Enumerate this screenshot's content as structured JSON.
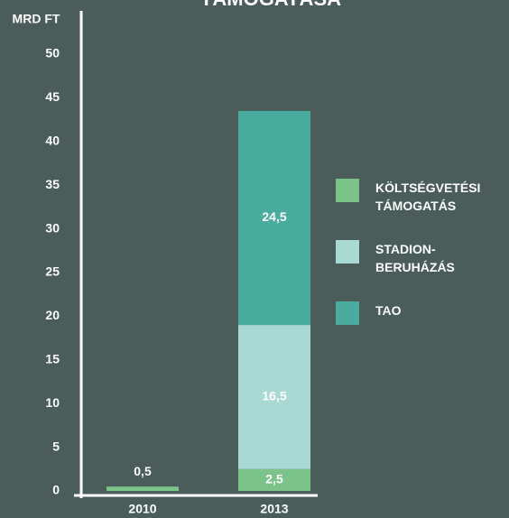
{
  "chart_data": {
    "type": "stacked_bar",
    "title": "TÁMOGATÁSA",
    "ylabel": "MRD FT",
    "categories": [
      "2010",
      "2013"
    ],
    "series": [
      {
        "name": "KÖLTSÉGVETÉSI TÁMOGATÁS",
        "color": "#7cc38a",
        "values": [
          0.5,
          2.5
        ],
        "value_labels": [
          "0,5",
          "2,5"
        ]
      },
      {
        "name": "STADION-BERUHÁZÁS",
        "color": "#a9d9d3",
        "values": [
          null,
          16.5
        ],
        "value_labels": [
          null,
          "16,5"
        ]
      },
      {
        "name": "TAO",
        "color": "#4aab9f",
        "values": [
          null,
          24.5
        ],
        "value_labels": [
          null,
          "24,5"
        ]
      }
    ],
    "ylim": [
      0,
      50
    ],
    "yticks": [
      0,
      5,
      10,
      15,
      20,
      25,
      30,
      35,
      40,
      45,
      50
    ]
  }
}
